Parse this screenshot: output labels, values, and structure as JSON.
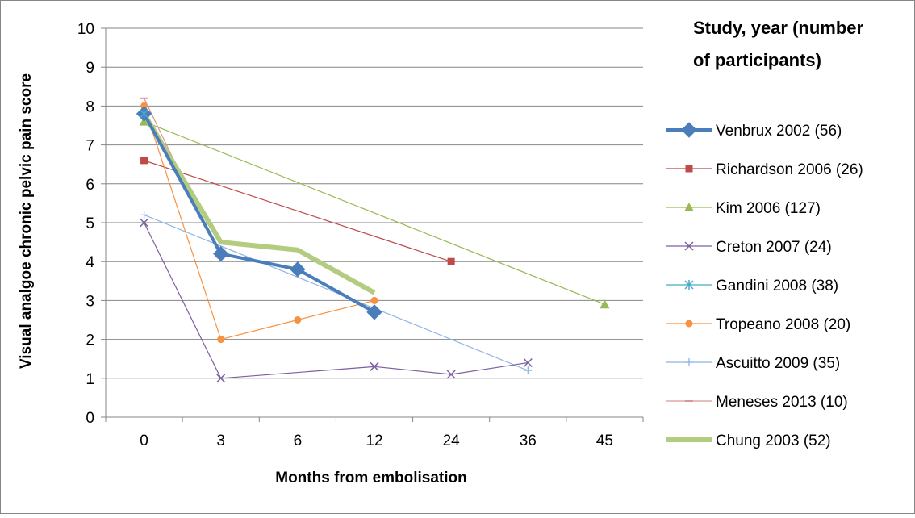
{
  "chart_data": {
    "type": "line",
    "title": "",
    "xlabel": "Months from embolisation",
    "ylabel": "Visual analgoe chronic pelvic pain score",
    "categories": [
      "0",
      "3",
      "6",
      "12",
      "24",
      "36",
      "45"
    ],
    "ylim": [
      0,
      10
    ],
    "yticks": [
      "0",
      "1",
      "2",
      "3",
      "4",
      "5",
      "6",
      "7",
      "8",
      "9",
      "10"
    ],
    "grid": "horizontal",
    "legend_position": "right",
    "legend_title": "Study, year (number of participants)",
    "series": [
      {
        "name": "Venbrux 2002 (56)",
        "color": "#4a7ebb",
        "marker": "diamond",
        "line_width": "thick",
        "values": [
          7.8,
          4.2,
          3.8,
          2.7,
          null,
          null,
          null
        ]
      },
      {
        "name": "Richardson 2006 (26)",
        "color": "#be4b48",
        "marker": "square",
        "line_width": "thin",
        "values": [
          6.6,
          null,
          null,
          null,
          4.0,
          null,
          null
        ]
      },
      {
        "name": "Kim 2006 (127)",
        "color": "#98b954",
        "marker": "triangle",
        "line_width": "thin",
        "values": [
          7.6,
          null,
          null,
          null,
          null,
          null,
          2.9
        ]
      },
      {
        "name": "Creton 2007 (24)",
        "color": "#7d60a0",
        "marker": "x",
        "line_width": "thin",
        "values": [
          5.0,
          1.0,
          null,
          1.3,
          1.1,
          1.4,
          null
        ]
      },
      {
        "name": "Gandini 2008 (38)",
        "color": "#46aac5",
        "marker": "star",
        "line_width": "thin",
        "values": [
          7.8,
          null,
          null,
          null,
          null,
          null,
          null
        ]
      },
      {
        "name": "Tropeano 2008 (20)",
        "color": "#f69240",
        "marker": "circle",
        "line_width": "thin",
        "values": [
          8.0,
          2.0,
          2.5,
          3.0,
          null,
          null,
          null
        ]
      },
      {
        "name": "Ascuitto 2009 (35)",
        "color": "#8eb4e3",
        "marker": "plus",
        "line_width": "thin",
        "values": [
          5.2,
          null,
          null,
          null,
          null,
          1.2,
          null
        ]
      },
      {
        "name": "Meneses 2013 (10)",
        "color": "#d99694",
        "marker": "dash",
        "line_width": "thin",
        "values": [
          8.2,
          4.1,
          null,
          null,
          null,
          null,
          null
        ]
      },
      {
        "name": "Chung 2003 (52)",
        "color": "#b3cc7f",
        "marker": "none",
        "line_width": "thick",
        "values": [
          7.8,
          4.5,
          4.3,
          3.2,
          null,
          null,
          null
        ]
      }
    ]
  }
}
